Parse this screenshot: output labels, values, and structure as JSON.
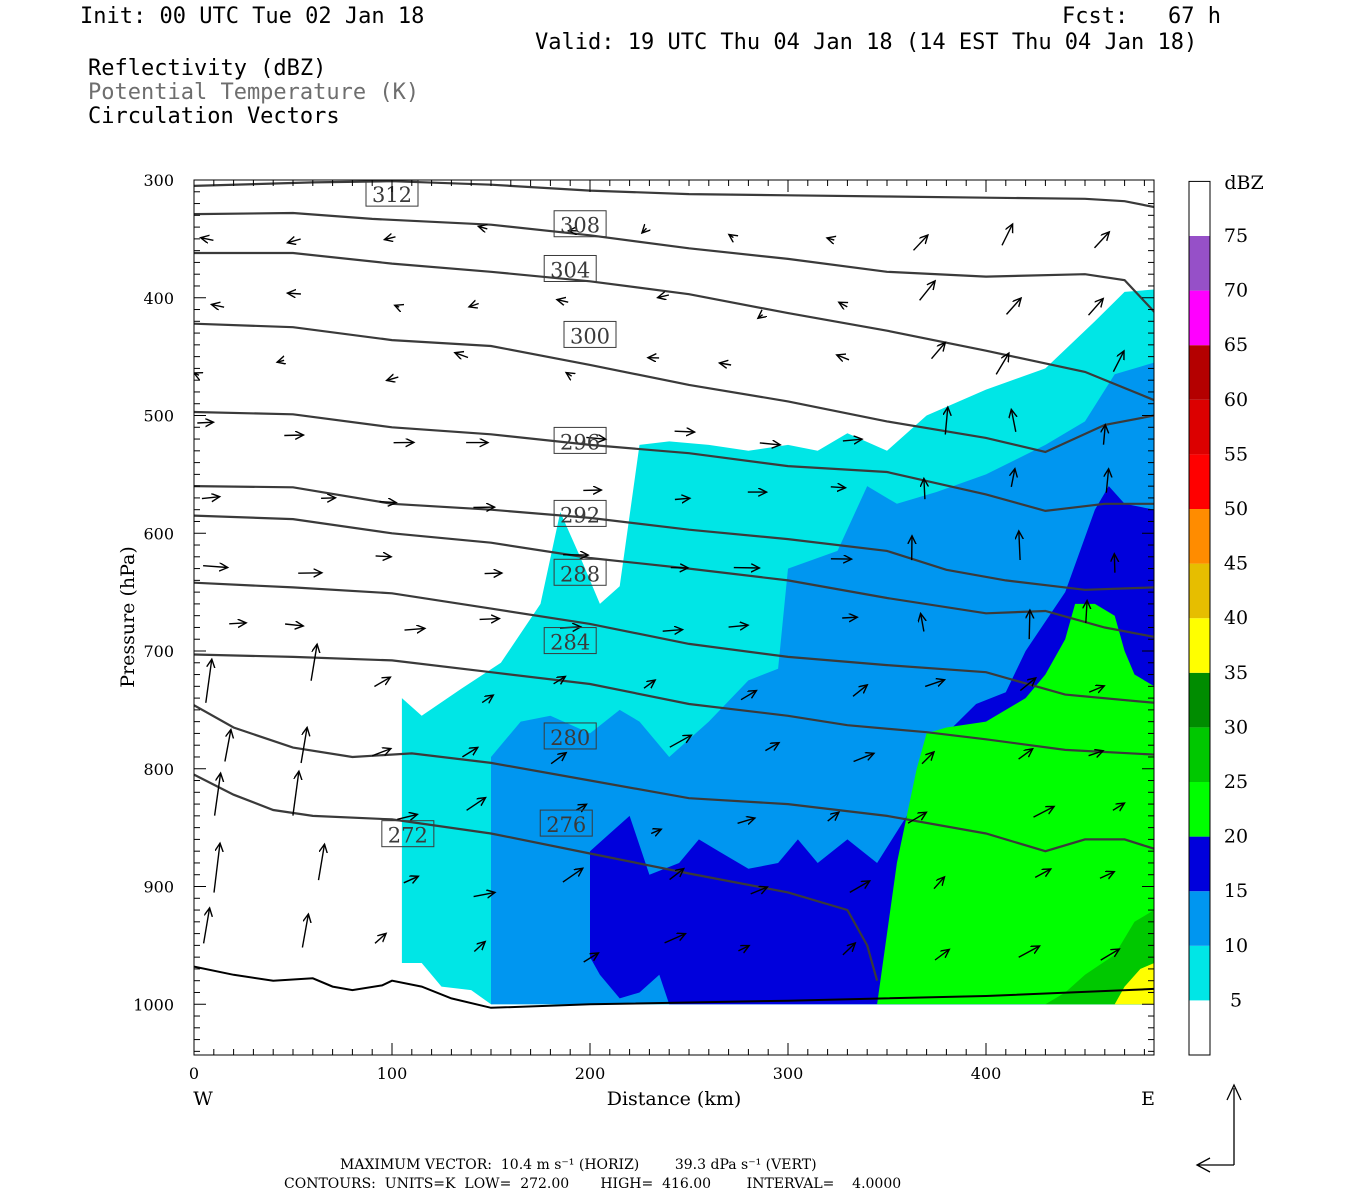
{
  "header": {
    "init": "Init: 00 UTC Tue 02 Jan 18",
    "fcst": "Fcst:   67 h",
    "valid": "Valid: 19 UTC Thu 04 Jan 18 (14 EST Thu 04 Jan 18)"
  },
  "legend": {
    "line1": "Reflectivity (dBZ)",
    "line2": "Potential Temperature (K)",
    "line3": "Circulation Vectors"
  },
  "footer": {
    "max_vector": "MAXIMUM VECTOR:  10.4 m s⁻¹ (HORIZ)        39.3 dPa s⁻¹ (VERT)",
    "contours": "CONTOURS:  UNITS=K  LOW=  272.00       HIGH=  416.00        INTERVAL=    4.0000"
  },
  "chart_data": {
    "type": "cross-section",
    "xlabel": "Distance (km)",
    "ylabel": "Pressure (hPa)",
    "x_left_label": "W",
    "x_right_label": "E",
    "xlim": [
      0,
      485
    ],
    "ylim": [
      1040,
      300
    ],
    "xticks": [
      0,
      100,
      200,
      300,
      400
    ],
    "yticks": [
      300,
      400,
      500,
      600,
      700,
      800,
      900,
      1000
    ],
    "colorbar": {
      "title": "dBZ",
      "levels": [
        5,
        10,
        15,
        20,
        25,
        30,
        35,
        40,
        45,
        50,
        55,
        60,
        65,
        70,
        75
      ],
      "colors": [
        "#ffffff",
        "#00e6e6",
        "#0096f0",
        "#0000dc",
        "#00ff00",
        "#00c800",
        "#008c00",
        "#ffff00",
        "#e6be00",
        "#ff8c00",
        "#ff0000",
        "#dc0000",
        "#b40000",
        "#ff00ff",
        "#9650c8",
        "#ffffff"
      ]
    },
    "theta_contours": [
      {
        "label": "312",
        "points": [
          [
            0,
            305
          ],
          [
            60,
            302
          ],
          [
            100,
            301
          ],
          [
            150,
            304
          ],
          [
            200,
            309
          ],
          [
            250,
            312
          ],
          [
            300,
            313
          ],
          [
            350,
            314
          ],
          [
            400,
            315
          ],
          [
            450,
            316
          ],
          [
            470,
            318
          ],
          [
            485,
            323
          ]
        ]
      },
      {
        "label": "308",
        "points": [
          [
            0,
            329
          ],
          [
            50,
            328
          ],
          [
            90,
            333
          ],
          [
            150,
            338
          ],
          [
            200,
            347
          ],
          [
            250,
            358
          ],
          [
            300,
            367
          ],
          [
            350,
            378
          ],
          [
            400,
            382
          ],
          [
            450,
            380
          ],
          [
            470,
            385
          ],
          [
            485,
            412
          ]
        ]
      },
      {
        "label": "304",
        "points": [
          [
            0,
            362
          ],
          [
            50,
            362
          ],
          [
            100,
            371
          ],
          [
            150,
            378
          ],
          [
            200,
            386
          ],
          [
            250,
            397
          ],
          [
            300,
            413
          ],
          [
            350,
            428
          ],
          [
            400,
            445
          ],
          [
            450,
            463
          ],
          [
            485,
            487
          ]
        ]
      },
      {
        "label": "300",
        "points": [
          [
            0,
            422
          ],
          [
            50,
            425
          ],
          [
            100,
            436
          ],
          [
            150,
            441
          ],
          [
            200,
            457
          ],
          [
            250,
            474
          ],
          [
            300,
            488
          ],
          [
            350,
            505
          ],
          [
            400,
            519
          ],
          [
            430,
            531
          ],
          [
            460,
            508
          ],
          [
            485,
            500
          ]
        ]
      },
      {
        "label": "296",
        "points": [
          [
            0,
            497
          ],
          [
            50,
            499
          ],
          [
            100,
            510
          ],
          [
            150,
            516
          ],
          [
            200,
            525
          ],
          [
            250,
            532
          ],
          [
            300,
            543
          ],
          [
            350,
            548
          ],
          [
            400,
            567
          ],
          [
            430,
            581
          ],
          [
            460,
            575
          ],
          [
            485,
            575
          ]
        ]
      },
      {
        "label": "292",
        "points": [
          [
            0,
            560
          ],
          [
            50,
            561
          ],
          [
            100,
            575
          ],
          [
            150,
            580
          ],
          [
            200,
            587
          ],
          [
            250,
            597
          ],
          [
            300,
            605
          ],
          [
            350,
            615
          ],
          [
            380,
            631
          ],
          [
            410,
            640
          ],
          [
            450,
            648
          ],
          [
            485,
            646
          ]
        ]
      },
      {
        "label": "288",
        "points": [
          [
            0,
            585
          ],
          [
            50,
            588
          ],
          [
            100,
            600
          ],
          [
            150,
            608
          ],
          [
            200,
            621
          ],
          [
            250,
            630
          ],
          [
            300,
            640
          ],
          [
            350,
            655
          ],
          [
            400,
            668
          ],
          [
            430,
            666
          ],
          [
            460,
            680
          ],
          [
            485,
            688
          ]
        ]
      },
      {
        "label": "284",
        "points": [
          [
            0,
            642
          ],
          [
            50,
            646
          ],
          [
            100,
            651
          ],
          [
            150,
            664
          ],
          [
            200,
            677
          ],
          [
            250,
            694
          ],
          [
            300,
            705
          ],
          [
            350,
            712
          ],
          [
            400,
            718
          ],
          [
            440,
            737
          ],
          [
            485,
            744
          ]
        ]
      },
      {
        "label": "280",
        "points": [
          [
            0,
            703
          ],
          [
            50,
            705
          ],
          [
            100,
            708
          ],
          [
            150,
            718
          ],
          [
            200,
            728
          ],
          [
            250,
            745
          ],
          [
            300,
            755
          ],
          [
            330,
            763
          ],
          [
            370,
            769
          ],
          [
            400,
            775
          ],
          [
            440,
            784
          ],
          [
            485,
            788
          ]
        ]
      },
      {
        "label": "276",
        "points": [
          [
            0,
            746
          ],
          [
            20,
            765
          ],
          [
            50,
            782
          ],
          [
            80,
            790
          ],
          [
            110,
            787
          ],
          [
            150,
            795
          ],
          [
            200,
            810
          ],
          [
            250,
            825
          ],
          [
            300,
            830
          ],
          [
            350,
            840
          ],
          [
            400,
            855
          ],
          [
            430,
            870
          ],
          [
            450,
            860
          ],
          [
            470,
            860
          ],
          [
            485,
            868
          ]
        ]
      },
      {
        "label": "272",
        "points": [
          [
            0,
            805
          ],
          [
            20,
            822
          ],
          [
            40,
            835
          ],
          [
            60,
            840
          ],
          [
            100,
            843
          ],
          [
            150,
            855
          ],
          [
            200,
            872
          ],
          [
            250,
            889
          ],
          [
            300,
            905
          ],
          [
            330,
            920
          ],
          [
            340,
            950
          ],
          [
            345,
            980
          ]
        ]
      }
    ],
    "reflectivity_polygons": [
      {
        "level": 5,
        "points": [
          [
            105,
            740
          ],
          [
            115,
            755
          ],
          [
            135,
            732
          ],
          [
            155,
            710
          ],
          [
            175,
            660
          ],
          [
            185,
            582
          ],
          [
            195,
            620
          ],
          [
            205,
            660
          ],
          [
            215,
            645
          ],
          [
            225,
            525
          ],
          [
            240,
            522
          ],
          [
            260,
            525
          ],
          [
            280,
            530
          ],
          [
            300,
            525
          ],
          [
            315,
            530
          ],
          [
            330,
            515
          ],
          [
            350,
            530
          ],
          [
            370,
            500
          ],
          [
            400,
            478
          ],
          [
            430,
            460
          ],
          [
            455,
            420
          ],
          [
            470,
            395
          ],
          [
            485,
            393
          ],
          [
            485,
            1000
          ],
          [
            455,
            1000
          ],
          [
            445,
            1000
          ],
          [
            160,
            1000
          ],
          [
            150,
            1000
          ],
          [
            140,
            988
          ],
          [
            125,
            985
          ],
          [
            115,
            965
          ],
          [
            105,
            965
          ]
        ]
      },
      {
        "level": 10,
        "points": [
          [
            150,
            790
          ],
          [
            165,
            760
          ],
          [
            180,
            755
          ],
          [
            200,
            770
          ],
          [
            215,
            750
          ],
          [
            225,
            760
          ],
          [
            240,
            790
          ],
          [
            260,
            760
          ],
          [
            280,
            725
          ],
          [
            295,
            715
          ],
          [
            300,
            630
          ],
          [
            325,
            615
          ],
          [
            340,
            560
          ],
          [
            355,
            575
          ],
          [
            375,
            565
          ],
          [
            400,
            550
          ],
          [
            430,
            525
          ],
          [
            450,
            505
          ],
          [
            465,
            465
          ],
          [
            485,
            455
          ],
          [
            485,
            1000
          ],
          [
            150,
            1000
          ]
        ]
      },
      {
        "level": 15,
        "points": [
          [
            200,
            870
          ],
          [
            210,
            855
          ],
          [
            220,
            840
          ],
          [
            230,
            890
          ],
          [
            245,
            880
          ],
          [
            255,
            860
          ],
          [
            265,
            870
          ],
          [
            280,
            885
          ],
          [
            295,
            880
          ],
          [
            305,
            860
          ],
          [
            315,
            880
          ],
          [
            330,
            860
          ],
          [
            345,
            880
          ],
          [
            360,
            840
          ],
          [
            370,
            810
          ],
          [
            380,
            770
          ],
          [
            395,
            745
          ],
          [
            410,
            735
          ],
          [
            420,
            700
          ],
          [
            440,
            650
          ],
          [
            455,
            580
          ],
          [
            462,
            560
          ],
          [
            470,
            575
          ],
          [
            485,
            580
          ],
          [
            485,
            1000
          ],
          [
            240,
            1000
          ],
          [
            235,
            975
          ],
          [
            225,
            990
          ],
          [
            215,
            995
          ],
          [
            205,
            975
          ],
          [
            200,
            960
          ]
        ]
      },
      {
        "level": 20,
        "points": [
          [
            345,
            1000
          ],
          [
            355,
            880
          ],
          [
            365,
            800
          ],
          [
            370,
            770
          ],
          [
            380,
            765
          ],
          [
            400,
            760
          ],
          [
            410,
            750
          ],
          [
            420,
            740
          ],
          [
            430,
            720
          ],
          [
            440,
            690
          ],
          [
            445,
            660
          ],
          [
            455,
            660
          ],
          [
            465,
            670
          ],
          [
            470,
            700
          ],
          [
            475,
            720
          ],
          [
            485,
            730
          ],
          [
            485,
            1000
          ]
        ]
      },
      {
        "level": 25,
        "points": [
          [
            430,
            1000
          ],
          [
            440,
            990
          ],
          [
            450,
            975
          ],
          [
            465,
            958
          ],
          [
            475,
            930
          ],
          [
            485,
            920
          ],
          [
            485,
            1000
          ]
        ]
      },
      {
        "level": 35,
        "points": [
          [
            465,
            1000
          ],
          [
            470,
            985
          ],
          [
            478,
            970
          ],
          [
            485,
            965
          ],
          [
            485,
            1000
          ]
        ]
      }
    ],
    "surface_line": [
      [
        0,
        968
      ],
      [
        20,
        975
      ],
      [
        40,
        980
      ],
      [
        60,
        978
      ],
      [
        70,
        985
      ],
      [
        80,
        988
      ],
      [
        95,
        984
      ],
      [
        100,
        980
      ],
      [
        115,
        985
      ],
      [
        130,
        995
      ],
      [
        150,
        1003
      ],
      [
        200,
        1000
      ],
      [
        300,
        997
      ],
      [
        400,
        993
      ],
      [
        485,
        987
      ]
    ]
  }
}
